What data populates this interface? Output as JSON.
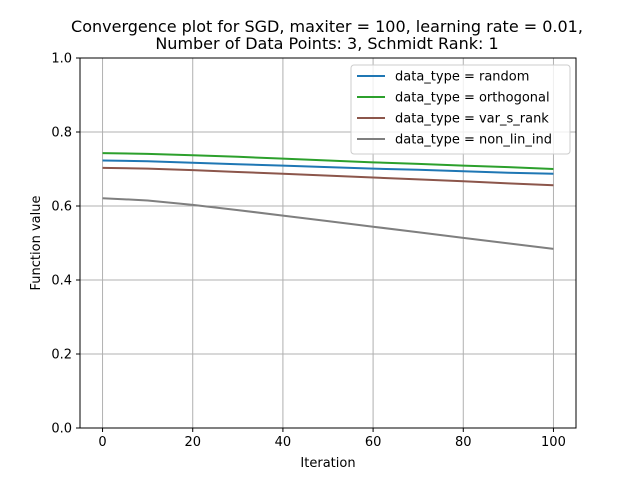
{
  "chart_data": {
    "type": "line",
    "title_lines": [
      "Convergence plot for SGD, maxiter = 100, learning rate = 0.01,",
      "Number of Data Points: 3, Schmidt Rank: 1"
    ],
    "xlabel": "Iteration",
    "ylabel": "Function value",
    "xlim": [
      -5,
      105
    ],
    "ylim": [
      0.0,
      1.0
    ],
    "xticks": [
      0,
      20,
      40,
      60,
      80,
      100
    ],
    "xtick_labels": [
      "0",
      "20",
      "40",
      "60",
      "80",
      "100"
    ],
    "yticks": [
      0.0,
      0.2,
      0.4,
      0.6,
      0.8,
      1.0
    ],
    "ytick_labels": [
      "0.0",
      "0.2",
      "0.4",
      "0.6",
      "0.8",
      "1.0"
    ],
    "grid": true,
    "legend_position": "top-right",
    "x": [
      0,
      10,
      20,
      30,
      40,
      50,
      60,
      70,
      80,
      90,
      100
    ],
    "series": [
      {
        "name": "data_type = random",
        "color": "#1f77b4",
        "values": [
          0.723,
          0.721,
          0.717,
          0.713,
          0.709,
          0.705,
          0.701,
          0.698,
          0.694,
          0.69,
          0.687
        ]
      },
      {
        "name": "data_type = orthogonal",
        "color": "#2ca02c",
        "values": [
          0.743,
          0.741,
          0.737,
          0.733,
          0.728,
          0.723,
          0.718,
          0.714,
          0.709,
          0.705,
          0.7
        ]
      },
      {
        "name": "data_type = var_s_rank",
        "color": "#8c564b",
        "values": [
          0.703,
          0.701,
          0.697,
          0.692,
          0.687,
          0.682,
          0.677,
          0.672,
          0.667,
          0.661,
          0.656
        ]
      },
      {
        "name": "data_type = non_lin_ind",
        "color": "#7f7f7f",
        "values": [
          0.621,
          0.615,
          0.603,
          0.589,
          0.574,
          0.559,
          0.544,
          0.529,
          0.514,
          0.499,
          0.484
        ]
      }
    ]
  }
}
